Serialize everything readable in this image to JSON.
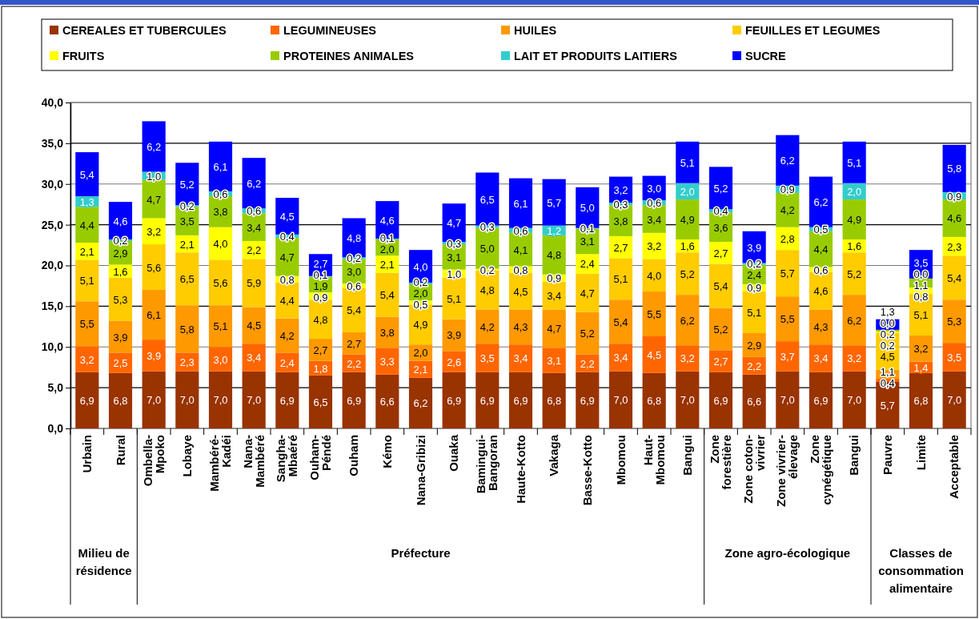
{
  "chart_data": {
    "type": "bar",
    "stacked": true,
    "categories": [
      "Urbain",
      "Rural",
      "Ombella-\nMpoko",
      "Lobaye",
      "Mambéré-\nKadéi",
      "Nana-\nMambéré",
      "Sangha-\nMbaéré",
      "Ouham-\nPéndé",
      "Ouham",
      "Kémo",
      "Nana-Gribizi",
      "Ouaka",
      "Bamingui-\nBangoran",
      "Haute-Kotto",
      "Vakaga",
      "Basse-Kotto",
      "Mbomou",
      "Haut-\nMbomou",
      "Bangui",
      "Zone\nforestière",
      "Zone coton-\nvivrier",
      "Zone vivrier-\nélevage",
      "Zone\ncynégétique",
      "Bangui",
      "Pauvre",
      "Limite",
      "Acceptable"
    ],
    "series": [
      {
        "name": "CEREALES ET TUBERCULES",
        "color": "#993300",
        "values": [
          6.9,
          6.8,
          7.0,
          7.0,
          7.0,
          7.0,
          6.9,
          6.5,
          6.9,
          6.6,
          6.2,
          6.9,
          6.9,
          6.9,
          6.8,
          6.9,
          7.0,
          6.8,
          7.0,
          6.9,
          6.6,
          7.0,
          6.9,
          7.0,
          5.7,
          6.8,
          7.0
        ],
        "value_labels": [
          "6,9",
          "6,8",
          "7,0",
          "7,0",
          "7,0",
          "7,0",
          "6,9",
          "6,5",
          "6,9",
          "6,6",
          "6,2",
          "6,9",
          "6,9",
          "6,9",
          "6,8",
          "6,9",
          "7,0",
          "6,8",
          "7,0",
          "6,9",
          "6,6",
          "7,0",
          "6,9",
          "7,0",
          "5,7",
          "6,8",
          "7,0"
        ]
      },
      {
        "name": "LEGUMINEUSES",
        "color": "#ff6600",
        "values": [
          3.2,
          2.5,
          3.9,
          2.3,
          3.0,
          3.4,
          2.4,
          1.8,
          2.2,
          3.3,
          2.1,
          2.6,
          3.5,
          3.4,
          3.1,
          2.2,
          3.4,
          4.5,
          3.2,
          2.7,
          2.2,
          3.7,
          3.4,
          3.2,
          0.4,
          1.4,
          3.5
        ],
        "value_labels": [
          "3,2",
          "2,5",
          "3,9",
          "2,3",
          "3,0",
          "3,4",
          "2,4",
          "1,8",
          "2,2",
          "3,3",
          "2,1",
          "2,6",
          "3,5",
          "3,4",
          "3,1",
          "2,2",
          "3,4",
          "4,5",
          "3,2",
          "2,7",
          "2,2",
          "3,7",
          "3,4",
          "3,2",
          "0,4",
          "1,4",
          "3,5"
        ]
      },
      {
        "name": "HUILES",
        "color": "#ff9900",
        "values": [
          5.5,
          3.9,
          6.1,
          5.8,
          5.1,
          4.5,
          4.2,
          2.7,
          2.7,
          3.8,
          2.0,
          3.9,
          4.2,
          4.3,
          4.7,
          5.2,
          5.4,
          5.5,
          6.2,
          5.2,
          2.9,
          5.5,
          4.3,
          6.2,
          1.1,
          3.2,
          5.3
        ],
        "value_labels": [
          "5,5",
          "3,9",
          "6,1",
          "5,8",
          "5,1",
          "4,5",
          "4,2",
          "2,7",
          "2,7",
          "3,8",
          "2,0",
          "3,9",
          "4,2",
          "4,3",
          "4,7",
          "5,2",
          "5,4",
          "5,5",
          "6,2",
          "5,2",
          "2,9",
          "5,5",
          "4,3",
          "6,2",
          "1,1",
          "3,2",
          "5,3"
        ]
      },
      {
        "name": "FEUILLES ET LEGUMES",
        "color": "#ffcc00",
        "values": [
          5.1,
          5.3,
          5.6,
          6.5,
          5.6,
          5.9,
          4.4,
          4.8,
          5.4,
          5.4,
          4.9,
          5.1,
          4.8,
          4.5,
          3.4,
          4.7,
          5.1,
          4.0,
          5.2,
          5.4,
          5.1,
          5.7,
          4.6,
          5.2,
          4.5,
          5.1,
          5.4
        ],
        "value_labels": [
          "5,1",
          "5,3",
          "5,6",
          "6,5",
          "5,6",
          "5,9",
          "4,4",
          "4,8",
          "5,4",
          "5,4",
          "4,9",
          "5,1",
          "4,8",
          "4,5",
          "3,4",
          "4,7",
          "5,1",
          "4,0",
          "5,2",
          "5,4",
          "5,1",
          "5,7",
          "4,6",
          "5,2",
          "4,5",
          "5,1",
          "5,4"
        ]
      },
      {
        "name": "FRUITS",
        "color": "#ffff00",
        "values": [
          2.1,
          1.6,
          3.2,
          2.1,
          4.0,
          2.2,
          0.8,
          0.9,
          0.6,
          2.1,
          0.5,
          1.0,
          0.2,
          0.8,
          0.9,
          2.4,
          2.7,
          3.2,
          1.6,
          2.7,
          0.9,
          2.8,
          0.6,
          1.6,
          0.2,
          0.8,
          2.3
        ],
        "value_labels": [
          "2,1",
          "1,6",
          "3,2",
          "2,1",
          "4,0",
          "2,2",
          "0,8",
          "0,9",
          "0,6",
          "2,1",
          "0,5",
          "1,0",
          "0,2",
          "0,8",
          "0,9",
          "2,4",
          "2,7",
          "3,2",
          "1,6",
          "2,7",
          "0,9",
          "2,8",
          "0,6",
          "1,6",
          "0,2",
          "0,8",
          "2,3"
        ]
      },
      {
        "name": "PROTEINES ANIMALES",
        "color": "#99cc00",
        "values": [
          4.4,
          2.9,
          4.7,
          3.5,
          3.8,
          3.4,
          4.7,
          1.9,
          3.0,
          2.0,
          2.0,
          3.1,
          5.0,
          4.1,
          4.8,
          3.1,
          3.8,
          3.4,
          4.9,
          3.6,
          2.4,
          4.2,
          4.4,
          4.9,
          0.2,
          1.1,
          4.6
        ],
        "value_labels": [
          "4,4",
          "2,9",
          "4,7",
          "3,5",
          "3,8",
          "3,4",
          "4,7",
          "1,9",
          "3,0",
          "2,0",
          "2,0",
          "3,1",
          "5,0",
          "4,1",
          "4,8",
          "3,1",
          "3,8",
          "3,4",
          "4,9",
          "3,6",
          "2,4",
          "4,2",
          "4,4",
          "4,9",
          "0,2",
          "1,1",
          "4,6"
        ]
      },
      {
        "name": "LAIT ET PRODUITS LAITIERS",
        "color": "#33cccc",
        "values": [
          1.3,
          0.2,
          1.0,
          0.2,
          0.6,
          0.6,
          0.4,
          0.1,
          0.2,
          0.1,
          0.2,
          0.3,
          0.3,
          0.6,
          1.2,
          0.1,
          0.3,
          0.6,
          2.0,
          0.4,
          0.2,
          0.9,
          0.5,
          2.0,
          0.0,
          0.0,
          0.9
        ],
        "value_labels": [
          "1,3",
          "0,2",
          "1,0",
          "0,2",
          "0,6",
          "0,6",
          "0,4",
          "0,1",
          "0,2",
          "0,1",
          "0,2",
          "0,3",
          "0,3",
          "0,6",
          "1,2",
          "0,1",
          "0,3",
          "0,6",
          "2,0",
          "0,4",
          "0,2",
          "0,9",
          "0,5",
          "2,0",
          "0,0",
          "0,0",
          "0,9"
        ]
      },
      {
        "name": "SUCRE",
        "color": "#0000ff",
        "values": [
          5.4,
          4.6,
          6.2,
          5.2,
          6.1,
          6.2,
          4.5,
          2.7,
          4.8,
          4.6,
          4.0,
          4.7,
          6.5,
          6.1,
          5.7,
          5.0,
          3.2,
          3.0,
          5.1,
          5.2,
          3.9,
          6.2,
          6.2,
          5.1,
          1.3,
          3.5,
          5.8
        ],
        "value_labels": [
          "5,4",
          "4,6",
          "6,2",
          "5,2",
          "6,1",
          "6,2",
          "4,5",
          "2,7",
          "4,8",
          "4,6",
          "4,0",
          "4,7",
          "6,5",
          "6,1",
          "5,7",
          "5,0",
          "3,2",
          "3,0",
          "5,1",
          "5,2",
          "3,9",
          "6,2",
          "6,2",
          "5,1",
          "1,3",
          "3,5",
          "5,8"
        ]
      }
    ],
    "ylim": [
      0,
      40
    ],
    "yticks": [
      {
        "value": 0,
        "label": "0,0"
      },
      {
        "value": 5,
        "label": "5,0"
      },
      {
        "value": 10,
        "label": "10,0"
      },
      {
        "value": 15,
        "label": "15,0"
      },
      {
        "value": 20,
        "label": "20,0"
      },
      {
        "value": 25,
        "label": "25,0"
      },
      {
        "value": 30,
        "label": "30,0"
      },
      {
        "value": 35,
        "label": "35,0"
      },
      {
        "value": 40,
        "label": "40,0"
      }
    ],
    "grid": "y",
    "legend": "top",
    "annotations": [
      "Milieu de\nrésidence",
      "Préfecture",
      "Zone agro-écologique",
      "Classes de\nconsommation\nalimentaire"
    ]
  }
}
